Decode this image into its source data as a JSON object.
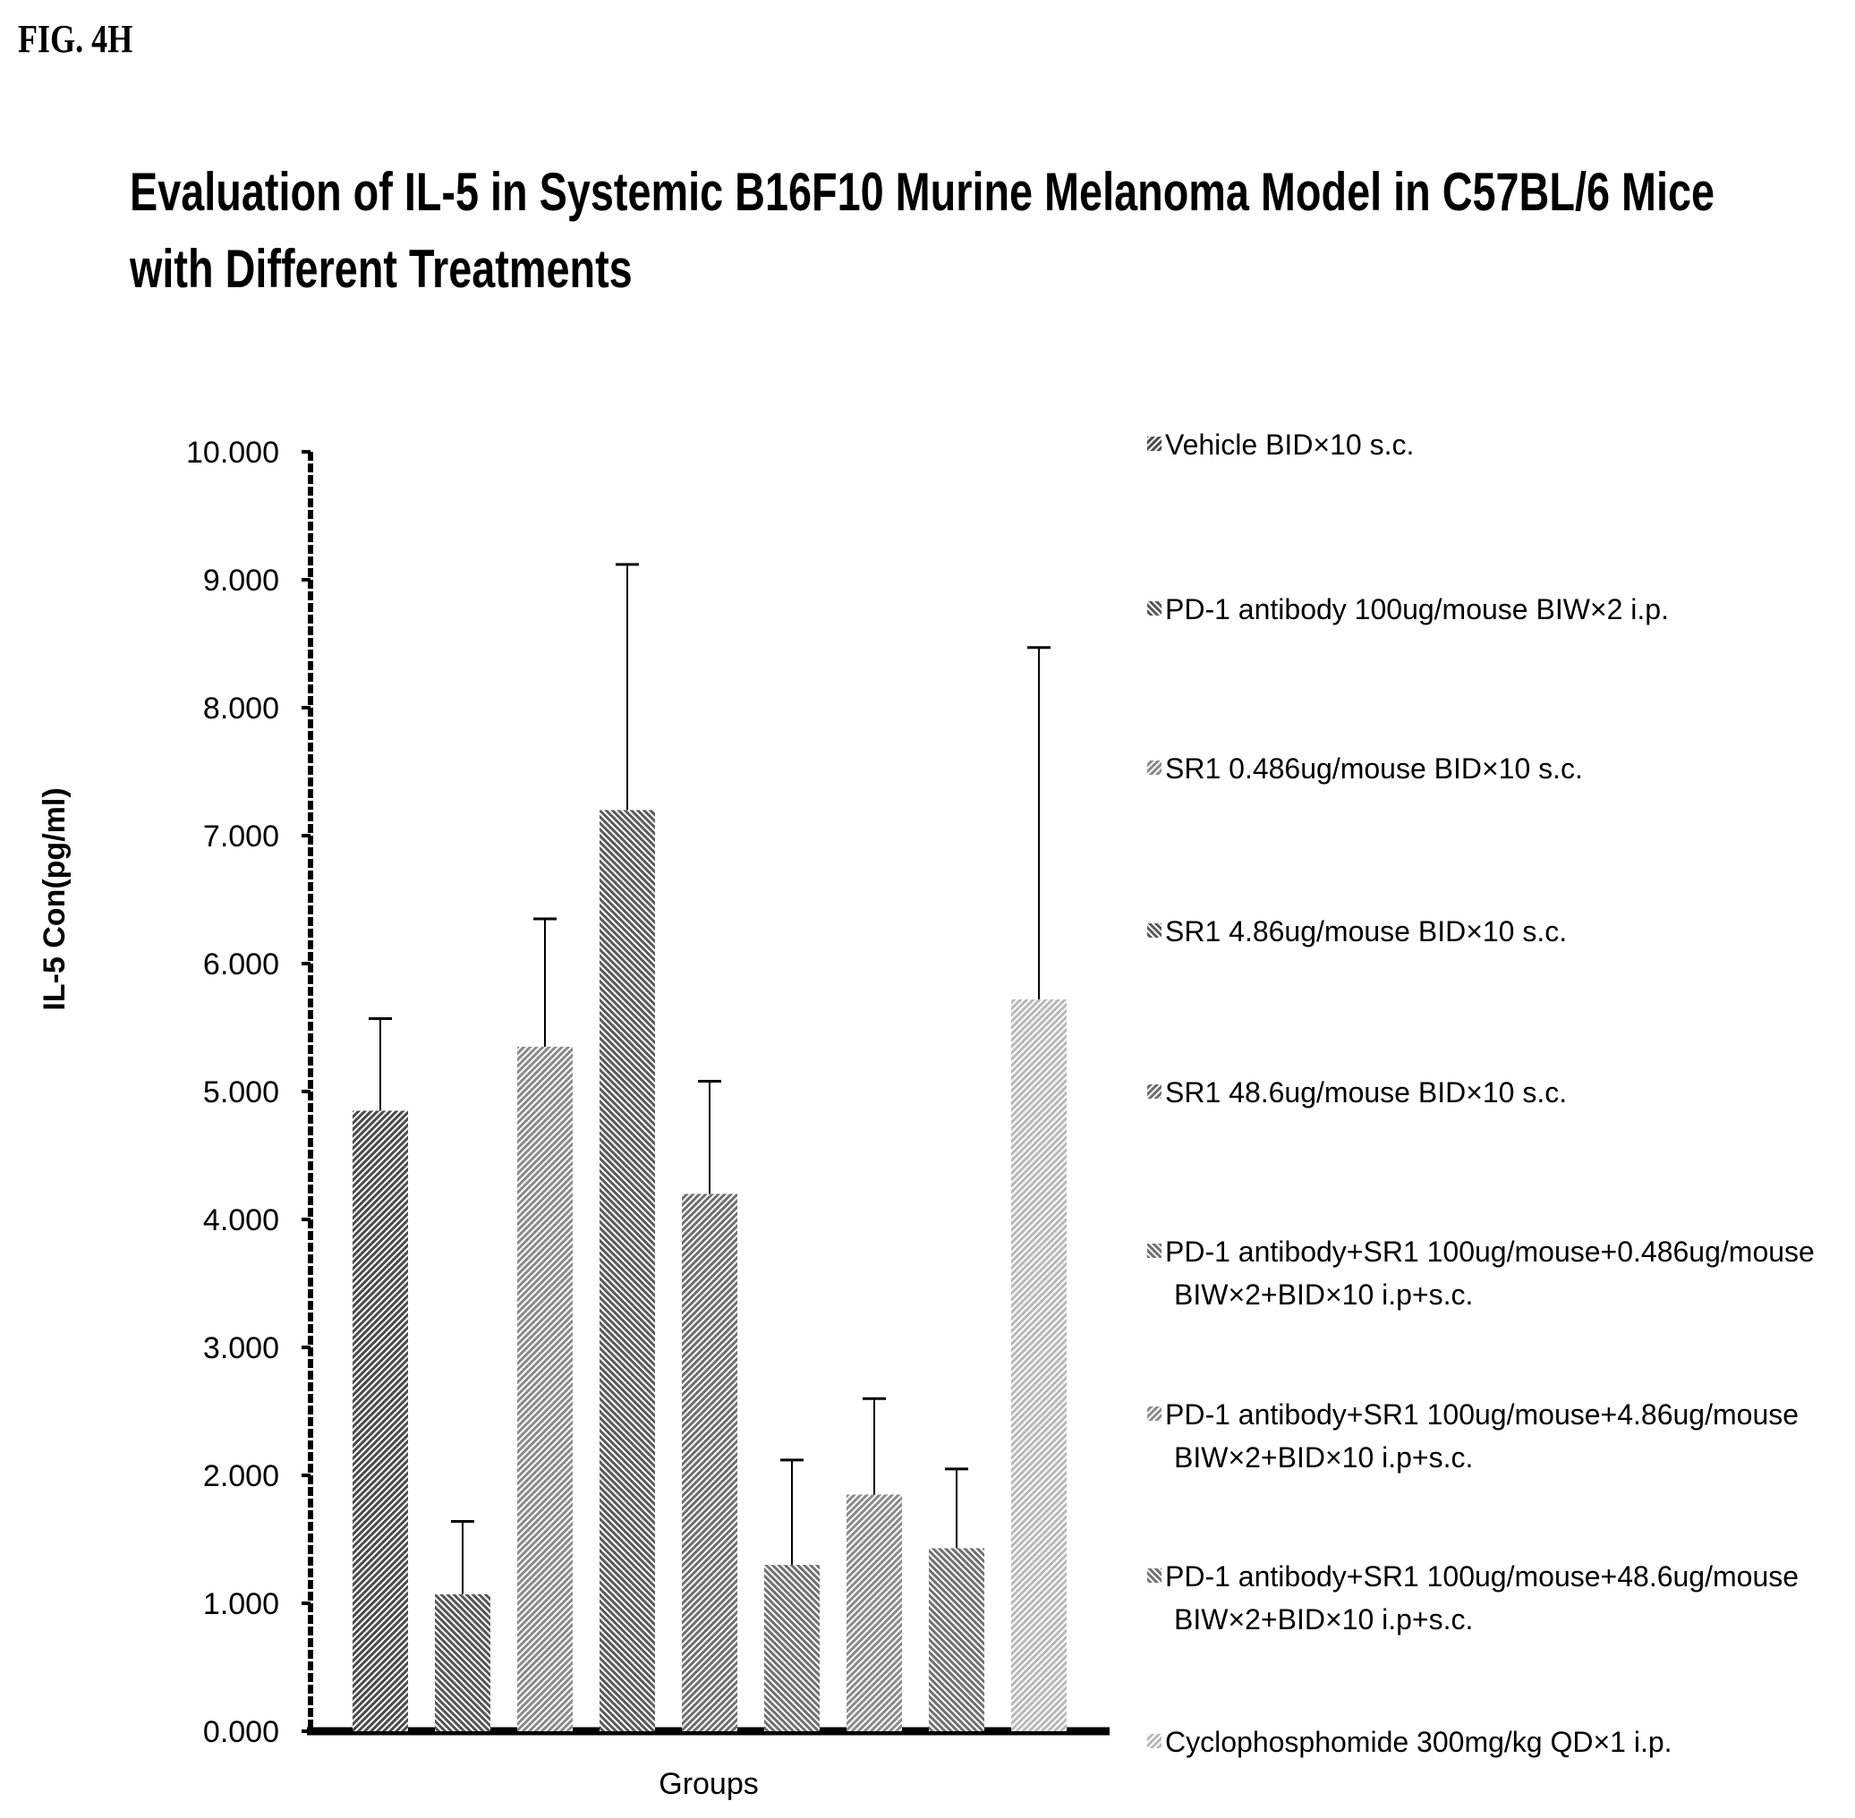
{
  "figure_label": "FIG. 4H",
  "chart_data": {
    "type": "bar",
    "title": "Evaluation of IL-5 in Systemic B16F10 Murine Melanoma Model in C57BL/6 Mice with Different Treatments",
    "xlabel": "Groups",
    "ylabel": "IL-5 Con(pg/ml)",
    "ylim": [
      0,
      10
    ],
    "yticks": [
      "0.000",
      "1.000",
      "2.000",
      "3.000",
      "4.000",
      "5.000",
      "6.000",
      "7.000",
      "8.000",
      "9.000",
      "10.000"
    ],
    "legend_position": "right",
    "series": [
      {
        "name": "Vehicle  BID×10 s.c.",
        "value": 4.85,
        "error": 0.72,
        "color": "#4a4a4a"
      },
      {
        "name": "PD-1 antibody 100ug/mouse BIW×2 i.p.",
        "value": 1.07,
        "error": 0.57,
        "color": "#555555"
      },
      {
        "name": "SR1 0.486ug/mouse BID×10 s.c.",
        "value": 5.35,
        "error": 1.0,
        "color": "#8a8a8a"
      },
      {
        "name": "SR1 4.86ug/mouse BID×10 s.c.",
        "value": 7.2,
        "error": 1.92,
        "color": "#5a5a5a"
      },
      {
        "name": "SR1 48.6ug/mouse BID×10 s.c.",
        "value": 4.2,
        "error": 0.88,
        "color": "#6e6e6e"
      },
      {
        "name": "PD-1 antibody+SR1 100ug/mouse+0.486ug/mouse BIW×2+BID×10 i.p+s.c.",
        "value": 1.3,
        "error": 0.82,
        "color": "#707070"
      },
      {
        "name": "PD-1 antibody+SR1 100ug/mouse+4.86ug/mouse BIW×2+BID×10 i.p+s.c.",
        "value": 1.85,
        "error": 0.75,
        "color": "#8a8a8a"
      },
      {
        "name": "PD-1 antibody+SR1 100ug/mouse+48.6ug/mouse BIW×2+BID×10 i.p+s.c.",
        "value": 1.43,
        "error": 0.62,
        "color": "#707070"
      },
      {
        "name": "Cyclophosphomide 300mg/kg QD×1 i.p.",
        "value": 5.72,
        "error": 2.75,
        "color": "#b8b8b8"
      }
    ]
  }
}
